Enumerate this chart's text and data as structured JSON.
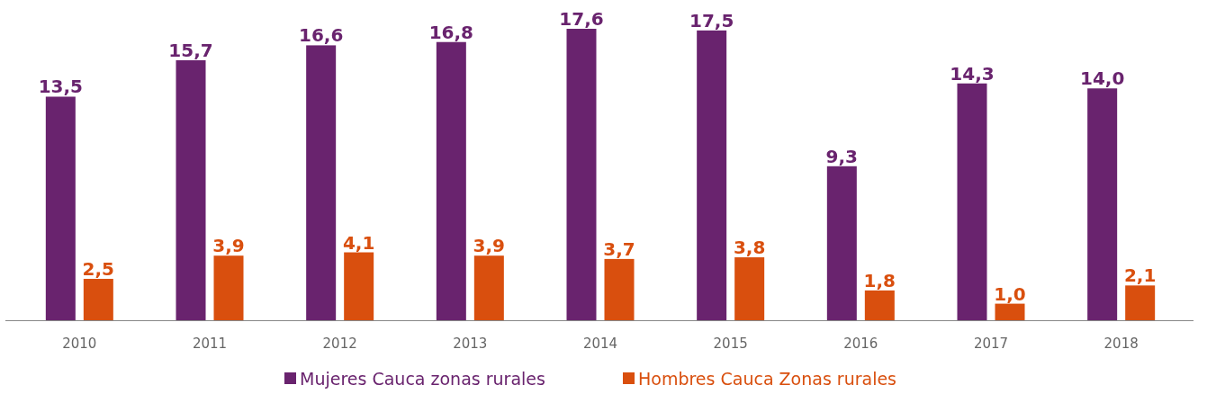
{
  "chart_data": {
    "type": "bar",
    "categories": [
      "2010",
      "2011",
      "2012",
      "2013",
      "2014",
      "2015",
      "2016",
      "2017",
      "2018"
    ],
    "series": [
      {
        "name": "Mujeres Cauca zonas rurales",
        "color": "#69236e",
        "values": [
          13.5,
          15.7,
          16.6,
          16.8,
          17.6,
          17.5,
          9.3,
          14.3,
          14.0
        ],
        "value_labels": [
          "13,5",
          "15,7",
          "16,6",
          "16,8",
          "17,6",
          "17,5",
          "9,3",
          "14,3",
          "14,0"
        ]
      },
      {
        "name": "Hombres Cauca Zonas rurales",
        "color": "#d94f0e",
        "values": [
          2.5,
          3.9,
          4.1,
          3.9,
          3.7,
          3.8,
          1.8,
          1.0,
          2.1
        ],
        "value_labels": [
          "2,5",
          "3,9",
          "4,1",
          "3,9",
          "3,7",
          "3,8",
          "1,8",
          "1,0",
          "2,1"
        ]
      }
    ],
    "legend": "bottom"
  }
}
